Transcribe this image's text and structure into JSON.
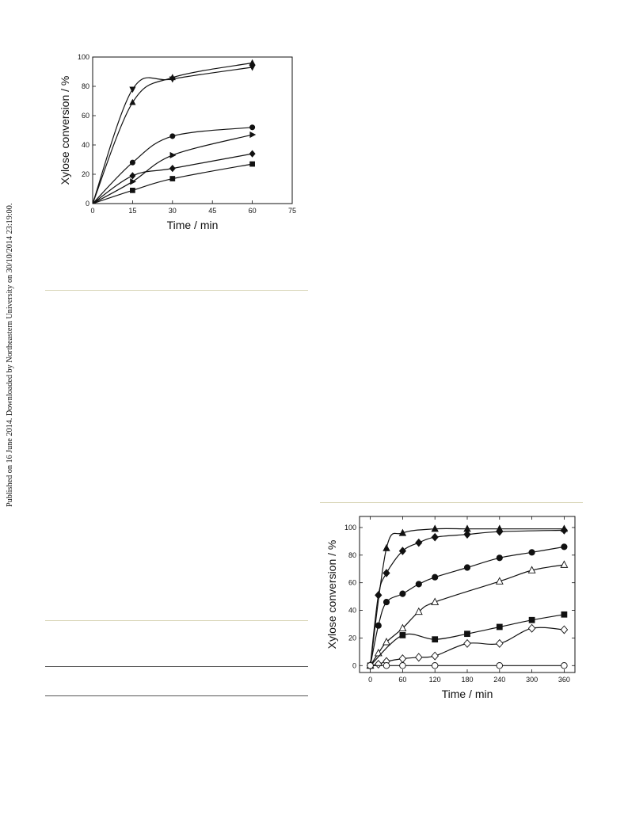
{
  "margin_note": "Published on 16 June 2014. Downloaded by Northeastern University on 30/10/2014 23:19:00.",
  "colors": {
    "rule_olive": "#d8d5b6",
    "rule_dark": "#555555",
    "ink": "#111111"
  },
  "chart_data": [
    {
      "type": "scatter",
      "title": "",
      "xlabel": "Time / min",
      "ylabel": "Xylose conversion / %",
      "xlim": [
        0,
        75
      ],
      "ylim": [
        0,
        100
      ],
      "xticks": [
        0,
        15,
        30,
        45,
        60,
        75
      ],
      "yticks": [
        0,
        20,
        40,
        60,
        80,
        100
      ],
      "grid": false,
      "legend": "none",
      "series": [
        {
          "marker": "triangle-down",
          "fill": "filled",
          "x": [
            0,
            15,
            30,
            60
          ],
          "y": [
            0,
            78,
            85,
            93
          ]
        },
        {
          "marker": "triangle-up",
          "fill": "filled",
          "x": [
            0,
            15,
            30,
            60
          ],
          "y": [
            0,
            69,
            86,
            96
          ]
        },
        {
          "marker": "circle",
          "fill": "filled",
          "x": [
            0,
            15,
            30,
            60
          ],
          "y": [
            0,
            28,
            46,
            52
          ]
        },
        {
          "marker": "triangle-right",
          "fill": "filled",
          "x": [
            0,
            15,
            30,
            60
          ],
          "y": [
            0,
            15,
            33,
            47
          ]
        },
        {
          "marker": "diamond",
          "fill": "filled",
          "x": [
            0,
            15,
            30,
            60
          ],
          "y": [
            0,
            19,
            24,
            34
          ]
        },
        {
          "marker": "square",
          "fill": "filled",
          "x": [
            0,
            15,
            30,
            60
          ],
          "y": [
            0,
            9,
            17,
            27
          ]
        }
      ]
    },
    {
      "type": "scatter",
      "title": "",
      "xlabel": "Time / min",
      "ylabel": "Xylose conversion / %",
      "xlim": [
        -20,
        380
      ],
      "ylim": [
        -5,
        108
      ],
      "xticks": [
        0,
        60,
        120,
        180,
        240,
        300,
        360
      ],
      "yticks": [
        0,
        20,
        40,
        60,
        80,
        100
      ],
      "grid": false,
      "legend": "none",
      "series": [
        {
          "marker": "triangle-up",
          "fill": "filled",
          "x": [
            0,
            30,
            60,
            120,
            180,
            240,
            360
          ],
          "y": [
            0,
            85,
            96,
            99,
            99,
            99,
            99
          ]
        },
        {
          "marker": "diamond",
          "fill": "filled",
          "x": [
            0,
            15,
            30,
            60,
            90,
            120,
            180,
            240,
            360
          ],
          "y": [
            0,
            51,
            67,
            83,
            89,
            93,
            95,
            97,
            98
          ]
        },
        {
          "marker": "circle",
          "fill": "filled",
          "x": [
            0,
            15,
            30,
            60,
            90,
            120,
            180,
            240,
            300,
            360
          ],
          "y": [
            0,
            29,
            46,
            52,
            59,
            64,
            71,
            78,
            82,
            86
          ]
        },
        {
          "marker": "triangle-up",
          "fill": "open",
          "x": [
            0,
            15,
            30,
            60,
            90,
            120,
            240,
            300,
            360
          ],
          "y": [
            0,
            9,
            17,
            27,
            39,
            46,
            61,
            69,
            73
          ]
        },
        {
          "marker": "square",
          "fill": "filled",
          "x": [
            0,
            60,
            120,
            180,
            240,
            300,
            360
          ],
          "y": [
            0,
            22,
            19,
            23,
            28,
            33,
            37
          ]
        },
        {
          "marker": "diamond",
          "fill": "open",
          "x": [
            0,
            15,
            30,
            60,
            90,
            120,
            180,
            240,
            300,
            360
          ],
          "y": [
            0,
            1,
            3,
            5,
            6,
            7,
            16,
            16,
            27,
            26
          ]
        },
        {
          "marker": "circle",
          "fill": "open",
          "x": [
            0,
            30,
            60,
            120,
            240,
            360
          ],
          "y": [
            0,
            0,
            0,
            0,
            0,
            0
          ]
        }
      ]
    }
  ]
}
